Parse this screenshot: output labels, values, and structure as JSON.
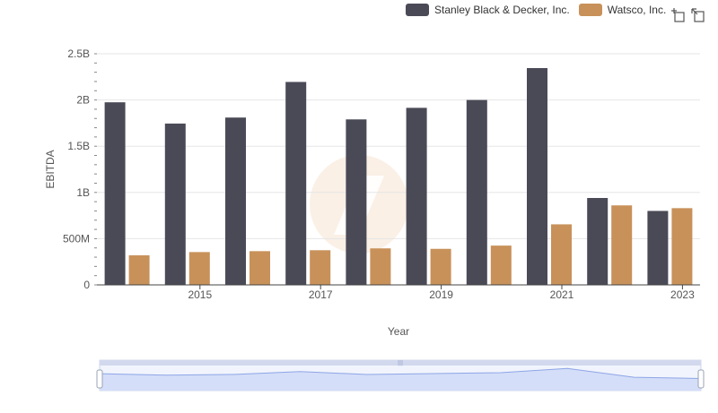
{
  "colors": {
    "series_a": "#4a4a57",
    "series_b": "#c8915a",
    "grid": "#e6e6e6",
    "axis": "#444444",
    "tick_text": "#555555",
    "zoom_fill": "#dfe6fb",
    "zoom_line": "#8fa6e8",
    "zoom_border": "#d2d9ee",
    "watermark": "#f6e4d2"
  },
  "legend": {
    "items": [
      {
        "label": "Stanley Black & Decker, Inc."
      },
      {
        "label": "Watsco, Inc."
      }
    ]
  },
  "toolbox": {
    "icons": [
      "zoom-select-icon",
      "zoom-reset-icon"
    ]
  },
  "chart_data": {
    "type": "bar",
    "categories": [
      "2014",
      "2015",
      "2016",
      "2017",
      "2018",
      "2019",
      "2020",
      "2021",
      "2022",
      "2023"
    ],
    "xtick_labels": [
      "",
      "2015",
      "",
      "2017",
      "",
      "2019",
      "",
      "2021",
      "",
      "2023"
    ],
    "series": [
      {
        "name": "Stanley Black & Decker, Inc.",
        "values": [
          1975000000,
          1745000000,
          1810000000,
          2195000000,
          1790000000,
          1915000000,
          2000000000,
          2345000000,
          940000000,
          800000000
        ]
      },
      {
        "name": "Watsco, Inc.",
        "values": [
          320000000,
          355000000,
          365000000,
          375000000,
          395000000,
          390000000,
          425000000,
          655000000,
          860000000,
          830000000
        ]
      }
    ],
    "ylim": [
      0,
      2500000000
    ],
    "yticks": [
      0,
      500000000,
      1000000000,
      1500000000,
      2000000000,
      2500000000
    ],
    "ytick_labels": [
      "0",
      "500M",
      "1B",
      "1.5B",
      "2B",
      "2.5B"
    ],
    "xlabel": "Year",
    "ylabel": "EBITDA",
    "grid": true,
    "legend_position": "top-right"
  }
}
